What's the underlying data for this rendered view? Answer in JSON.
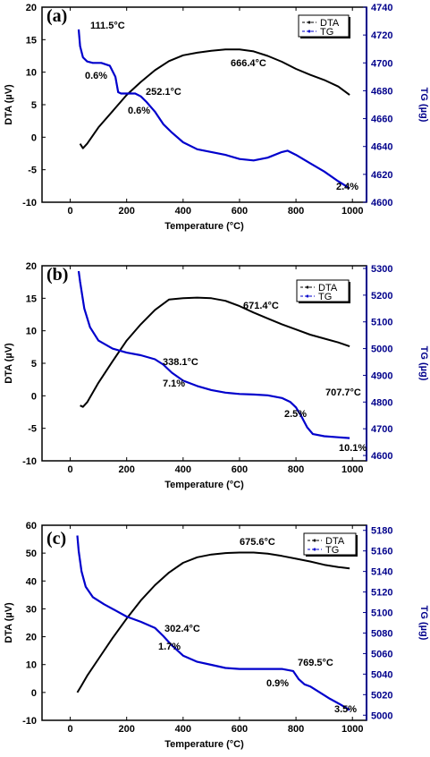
{
  "chart_data": [
    {
      "type": "line",
      "panel_label": "(a)",
      "xlabel": "Temperature (°C)",
      "ylabel_left": "DTA (µV)",
      "ylabel_right": "TG (µg)",
      "xlim": [
        -100,
        1050
      ],
      "xticks": [
        0,
        200,
        400,
        600,
        800,
        1000
      ],
      "ylim_left": [
        -10,
        20
      ],
      "yticks_left": [
        -10,
        -5,
        0,
        5,
        10,
        15,
        20
      ],
      "ylim_right": [
        4600,
        4740
      ],
      "yticks_right": [
        4600,
        4620,
        4640,
        4660,
        4680,
        4700,
        4720,
        4740
      ],
      "legend": [
        "DTA",
        "TG"
      ],
      "colors": {
        "DTA": "#000000",
        "TG": "#0000cc",
        "right_axis": "#00008b"
      },
      "series": [
        {
          "name": "DTA",
          "axis": "left",
          "x": [
            35,
            45,
            60,
            100,
            150,
            200,
            250,
            300,
            350,
            400,
            450,
            500,
            550,
            600,
            650,
            700,
            750,
            800,
            850,
            900,
            950,
            990
          ],
          "y": [
            -1,
            -1.7,
            -1,
            1.5,
            4,
            6.5,
            8.5,
            10.3,
            11.7,
            12.6,
            13,
            13.3,
            13.5,
            13.5,
            13.2,
            12.5,
            11.6,
            10.5,
            9.6,
            8.8,
            7.8,
            6.5
          ]
        },
        {
          "name": "TG",
          "axis": "right",
          "x": [
            30,
            35,
            45,
            60,
            80,
            110,
            140,
            160,
            170,
            180,
            200,
            230,
            250,
            270,
            300,
            330,
            360,
            400,
            450,
            500,
            550,
            600,
            650,
            700,
            750,
            770,
            800,
            850,
            900,
            950,
            990
          ],
          "y": [
            4724,
            4712,
            4704,
            4701,
            4700,
            4700,
            4698,
            4690,
            4679,
            4678,
            4678,
            4678,
            4676,
            4672,
            4665,
            4656,
            4650,
            4643,
            4638,
            4636,
            4634,
            4631,
            4630,
            4632,
            4636,
            4637,
            4634,
            4628,
            4622,
            4615,
            4610
          ]
        }
      ],
      "annotations": [
        "111.5°C",
        "0.6%",
        "252.1°C",
        "0.6%",
        "666.4°C",
        "2.4%"
      ]
    },
    {
      "type": "line",
      "panel_label": "(b)",
      "xlabel": "Temperature (°C)",
      "ylabel_left": "DTA (µV)",
      "ylabel_right": "TG (µg)",
      "xlim": [
        -100,
        1050
      ],
      "xticks": [
        0,
        200,
        400,
        600,
        800,
        1000
      ],
      "ylim_left": [
        -10,
        20
      ],
      "yticks_left": [
        -10,
        -5,
        0,
        5,
        10,
        15,
        20
      ],
      "ylim_right": [
        4580,
        5310
      ],
      "yticks_right": [
        4600,
        4700,
        4800,
        4900,
        5000,
        5100,
        5200,
        5300
      ],
      "legend": [
        "DTA",
        "TG"
      ],
      "colors": {
        "DTA": "#000000",
        "TG": "#0000cc",
        "right_axis": "#00008b"
      },
      "series": [
        {
          "name": "DTA",
          "axis": "left",
          "x": [
            35,
            45,
            60,
            100,
            150,
            200,
            250,
            300,
            350,
            400,
            450,
            500,
            550,
            600,
            650,
            700,
            750,
            800,
            850,
            900,
            950,
            990
          ],
          "y": [
            -1.5,
            -1.7,
            -1,
            2,
            5.3,
            8.5,
            11,
            13.2,
            14.8,
            15,
            15.1,
            15,
            14.6,
            13.8,
            12.8,
            11.9,
            11,
            10.2,
            9.4,
            8.8,
            8.2,
            7.6
          ]
        },
        {
          "name": "TG",
          "axis": "right",
          "x": [
            30,
            35,
            50,
            70,
            100,
            150,
            200,
            250,
            300,
            330,
            360,
            400,
            450,
            500,
            550,
            600,
            650,
            700,
            750,
            780,
            800,
            820,
            840,
            860,
            900,
            950,
            990
          ],
          "y": [
            5290,
            5250,
            5150,
            5080,
            5030,
            5000,
            4985,
            4975,
            4960,
            4940,
            4910,
            4880,
            4860,
            4845,
            4835,
            4830,
            4828,
            4825,
            4815,
            4800,
            4780,
            4745,
            4705,
            4680,
            4672,
            4668,
            4665
          ]
        }
      ],
      "annotations": [
        "671.4°C",
        "338.1°C",
        "7.1%",
        "707.7°C",
        "2.5%",
        "10.1%"
      ]
    },
    {
      "type": "line",
      "panel_label": "(c)",
      "xlabel": "Temperature (°C)",
      "ylabel_left": "DTA (µV)",
      "ylabel_right": "TG (µg)",
      "xlim": [
        -100,
        1050
      ],
      "xticks": [
        0,
        200,
        400,
        600,
        800,
        1000
      ],
      "ylim_left": [
        -10,
        60
      ],
      "yticks_left": [
        -10,
        0,
        10,
        20,
        30,
        40,
        50,
        60
      ],
      "ylim_right": [
        4995,
        5185
      ],
      "yticks_right": [
        5000,
        5020,
        5040,
        5060,
        5080,
        5100,
        5120,
        5140,
        5160,
        5180
      ],
      "legend": [
        "DTA",
        "TG"
      ],
      "colors": {
        "DTA": "#000000",
        "TG": "#0000cc",
        "right_axis": "#00008b"
      },
      "series": [
        {
          "name": "DTA",
          "axis": "left",
          "x": [
            25,
            40,
            60,
            100,
            150,
            200,
            250,
            300,
            350,
            400,
            450,
            500,
            550,
            600,
            650,
            700,
            750,
            800,
            850,
            900,
            950,
            990
          ],
          "y": [
            0,
            2.5,
            6,
            12,
            19.5,
            26.5,
            33,
            38.5,
            43,
            46.5,
            48.5,
            49.5,
            50,
            50.2,
            50.2,
            49.8,
            49,
            48,
            47,
            45.8,
            45,
            44.5
          ]
        },
        {
          "name": "TG",
          "axis": "right",
          "x": [
            25,
            30,
            40,
            55,
            80,
            120,
            160,
            200,
            250,
            300,
            330,
            360,
            400,
            450,
            500,
            550,
            600,
            650,
            700,
            750,
            790,
            810,
            830,
            850,
            880,
            920,
            960,
            990
          ],
          "y": [
            5175,
            5160,
            5140,
            5125,
            5115,
            5108,
            5102,
            5096,
            5091,
            5085,
            5077,
            5068,
            5058,
            5052,
            5049,
            5046,
            5045,
            5045,
            5045,
            5045,
            5043,
            5035,
            5030,
            5028,
            5023,
            5016,
            5010,
            5005
          ]
        }
      ],
      "annotations": [
        "675.6°C",
        "302.4°C",
        "1.7%",
        "769.5°C",
        "0.9%",
        "3.5%"
      ]
    }
  ]
}
